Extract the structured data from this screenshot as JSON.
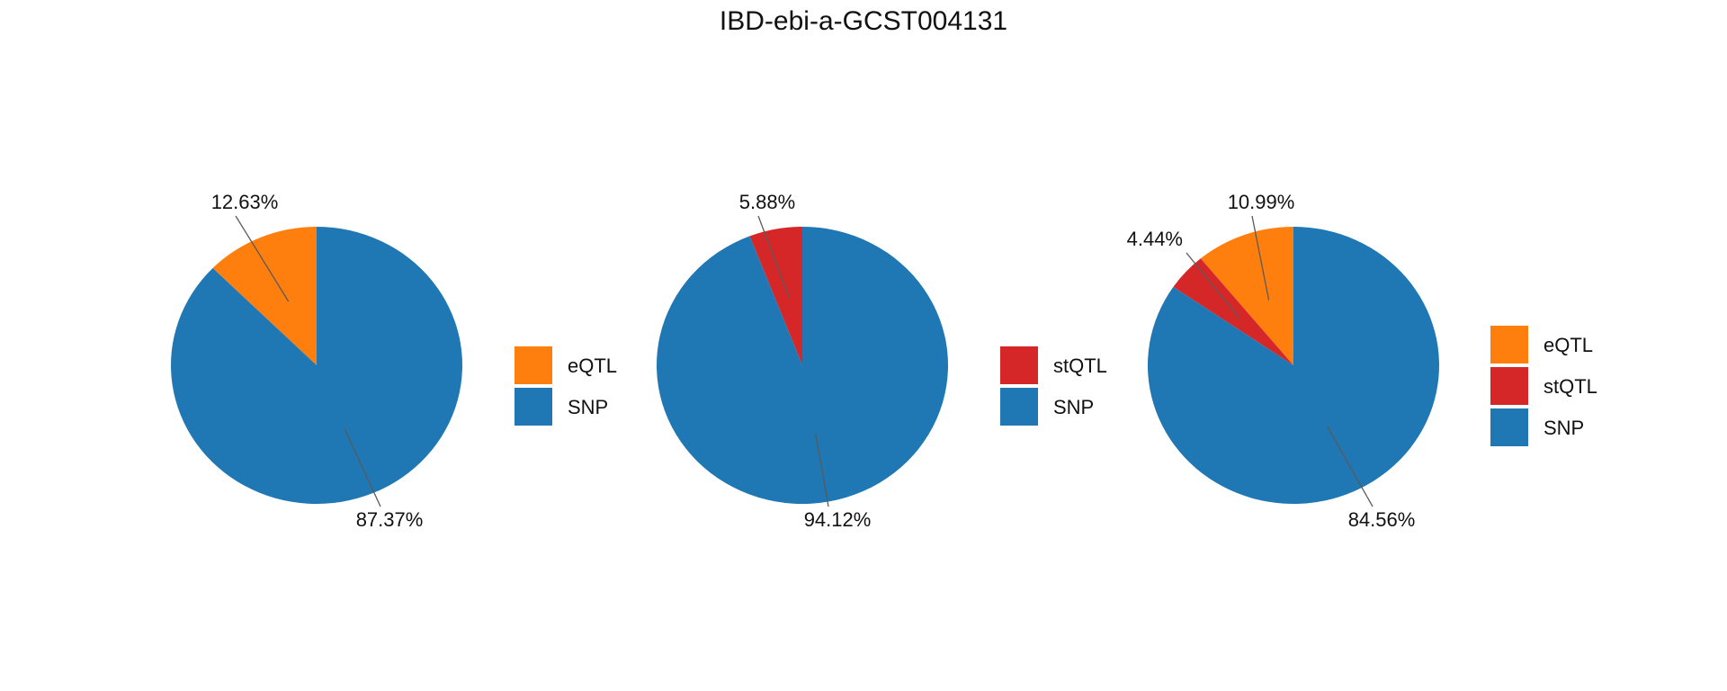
{
  "title": "IBD-ebi-a-GCST004131",
  "colors": {
    "eQTL": "#ff7f0e",
    "stQTL": "#d62728",
    "SNP": "#1f77b4"
  },
  "chart_data": [
    {
      "type": "pie",
      "slices": [
        {
          "category": "eQTL",
          "value": 12.63,
          "label": "12.63%"
        },
        {
          "category": "SNP",
          "value": 87.37,
          "label": "87.37%"
        }
      ],
      "legend": [
        "eQTL",
        "SNP"
      ]
    },
    {
      "type": "pie",
      "slices": [
        {
          "category": "stQTL",
          "value": 5.88,
          "label": "5.88%"
        },
        {
          "category": "SNP",
          "value": 94.12,
          "label": "94.12%"
        }
      ],
      "legend": [
        "stQTL",
        "SNP"
      ]
    },
    {
      "type": "pie",
      "slices": [
        {
          "category": "eQTL",
          "value": 10.99,
          "label": "10.99%"
        },
        {
          "category": "stQTL",
          "value": 4.44,
          "label": "4.44%"
        },
        {
          "category": "SNP",
          "value": 84.56,
          "label": "84.56%"
        }
      ],
      "legend": [
        "eQTL",
        "stQTL",
        "SNP"
      ]
    }
  ]
}
